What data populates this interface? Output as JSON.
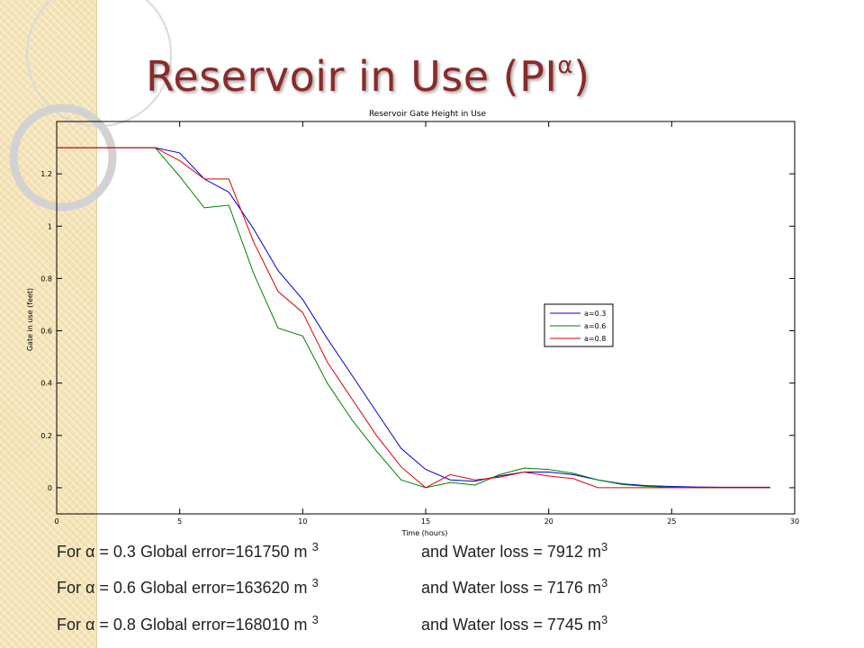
{
  "slide": {
    "title_main": "Reservoir in Use (PI",
    "title_sup": "α",
    "title_close": ")"
  },
  "results": [
    {
      "error_text": "For α = 0.3 Global error=161750 m ",
      "error_unit_exp": "3",
      "loss_text": "and Water loss = 7912 m",
      "loss_unit_exp": "3"
    },
    {
      "error_text": "For α = 0.6 Global error=163620 m ",
      "error_unit_exp": "3",
      "loss_text": "and Water loss = 7176 m",
      "loss_unit_exp": "3"
    },
    {
      "error_text": "For α = 0.8 Global error=168010 m ",
      "error_unit_exp": "3",
      "loss_text": "and Water loss = 7745 m",
      "loss_unit_exp": "3"
    }
  ],
  "chart_data": {
    "type": "line",
    "title": "Reservoir Gate Height in Use",
    "xlabel": "Time (hours)",
    "ylabel": "Gate in use (feet)",
    "xlim": [
      0,
      30
    ],
    "ylim": [
      -0.1,
      1.4
    ],
    "xticks": [
      0,
      5,
      10,
      15,
      20,
      25,
      30
    ],
    "yticks": [
      0,
      0.2,
      0.4,
      0.6,
      0.8,
      1,
      1.2
    ],
    "xtick_labels": [
      "0",
      "5",
      "10",
      "15",
      "20",
      "25",
      "30"
    ],
    "ytick_labels": [
      "0",
      "0.2",
      "0.4",
      "0.6",
      "0.8",
      "1",
      "1.2"
    ],
    "grid": false,
    "legend_position": "right",
    "series": [
      {
        "name": "a=0.3",
        "color": "#0000cc",
        "x": [
          0,
          4,
          5,
          6,
          7,
          8,
          9,
          10,
          11,
          12,
          13,
          14,
          15,
          16,
          17,
          18,
          19,
          20,
          21,
          22,
          23,
          24,
          25,
          26,
          27,
          28,
          29
        ],
        "y": [
          1.3,
          1.3,
          1.28,
          1.18,
          1.13,
          0.99,
          0.83,
          0.72,
          0.57,
          0.43,
          0.29,
          0.15,
          0.07,
          0.03,
          0.025,
          0.045,
          0.06,
          0.06,
          0.05,
          0.03,
          0.015,
          0.008,
          0.005,
          0.003,
          0.002,
          0.002,
          0.002
        ]
      },
      {
        "name": "a=0.6",
        "color": "#008000",
        "x": [
          0,
          4,
          5,
          6,
          7,
          8,
          9,
          10,
          11,
          12,
          13,
          14,
          15,
          16,
          17,
          18,
          19,
          20,
          21,
          22,
          23,
          24,
          25,
          26,
          27,
          28,
          29
        ],
        "y": [
          1.3,
          1.3,
          1.19,
          1.07,
          1.08,
          0.82,
          0.61,
          0.58,
          0.4,
          0.26,
          0.14,
          0.03,
          0.0,
          0.02,
          0.01,
          0.05,
          0.075,
          0.07,
          0.055,
          0.03,
          0.012,
          0.005,
          0.002,
          0.0,
          0.0,
          0.0,
          0.0
        ]
      },
      {
        "name": "a=0.8",
        "color": "#dd0000",
        "x": [
          0,
          4,
          5,
          6,
          7,
          8,
          9,
          10,
          11,
          12,
          13,
          14,
          15,
          16,
          17,
          18,
          19,
          20,
          21,
          22,
          23,
          24,
          25,
          26,
          27,
          28,
          29
        ],
        "y": [
          1.3,
          1.3,
          1.25,
          1.18,
          1.18,
          0.94,
          0.75,
          0.67,
          0.48,
          0.34,
          0.2,
          0.08,
          0.0,
          0.05,
          0.03,
          0.04,
          0.06,
          0.045,
          0.035,
          0.0,
          0.0,
          0.0,
          0.0,
          0.0,
          0.0,
          0.0,
          0.0
        ]
      }
    ]
  }
}
